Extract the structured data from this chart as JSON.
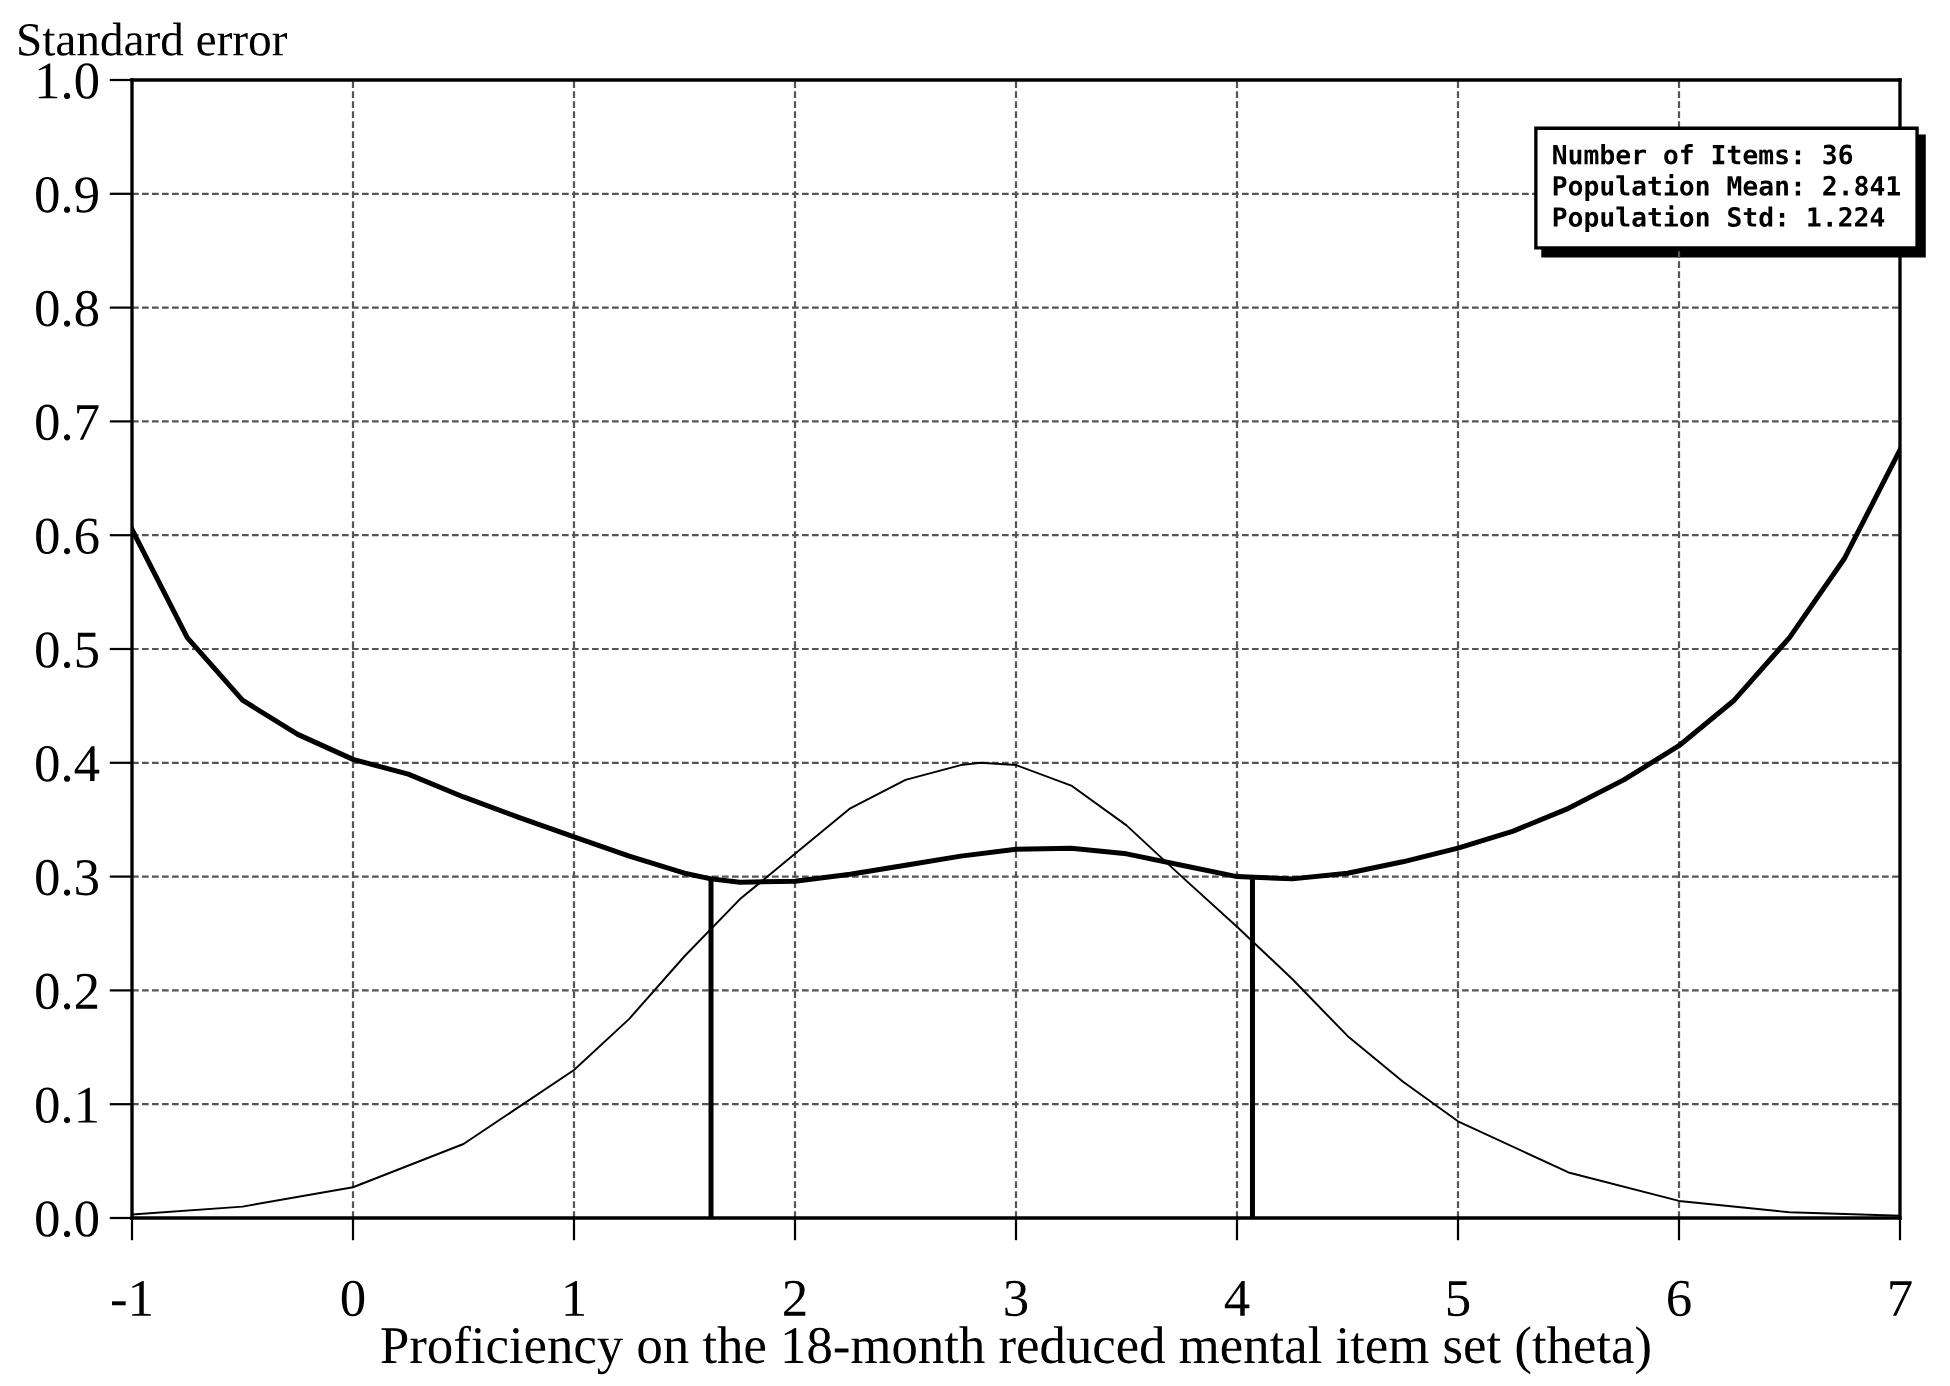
{
  "chart_data": {
    "type": "line",
    "ylabel": "Standard error",
    "xlabel": "Proficiency on the 18-month reduced mental item set (theta)",
    "annotations": [
      "Number of Items: 36\nPopulation Mean: 2.841\nPopulation Std: 1.224"
    ],
    "series": [
      {
        "color": "#000000",
        "x": [
          -1,
          -0.75,
          -0.5,
          -0.25,
          0,
          0.25,
          0.5,
          0.75,
          1,
          1.25,
          1.5,
          1.62,
          1.75,
          2,
          2.25,
          2.5,
          2.75,
          3,
          3.25,
          3.5,
          3.75,
          4,
          4.25,
          4.5,
          4.75,
          5,
          5.25,
          5.5,
          5.75,
          6,
          6.25,
          6.5,
          6.75,
          7
        ],
        "values": [
          0.605,
          0.51,
          0.455,
          0.425,
          0.403,
          0.39,
          0.37,
          0.352,
          0.335,
          0.318,
          0.303,
          0.298,
          0.295,
          0.296,
          0.302,
          0.31,
          0.318,
          0.324,
          0.325,
          0.32,
          0.31,
          0.3,
          0.298,
          0.303,
          0.313,
          0.325,
          0.34,
          0.36,
          0.385,
          0.415,
          0.455,
          0.51,
          0.58,
          0.675
        ]
      },
      {
        "color": "#000000",
        "x": [
          -1,
          -0.5,
          0,
          0.5,
          1,
          1.25,
          1.5,
          1.75,
          2,
          2.25,
          2.5,
          2.75,
          2.84,
          3,
          3.25,
          3.5,
          3.75,
          4,
          4.25,
          4.5,
          4.75,
          5,
          5.5,
          6,
          6.5,
          7
        ],
        "values": [
          0.003,
          0.01,
          0.027,
          0.065,
          0.13,
          0.175,
          0.23,
          0.28,
          0.32,
          0.36,
          0.385,
          0.398,
          0.4,
          0.398,
          0.38,
          0.345,
          0.3,
          0.256,
          0.21,
          0.16,
          0.12,
          0.085,
          0.04,
          0.015,
          0.005,
          0.002
        ]
      },
      {
        "color": "#000000",
        "x": [
          1.62,
          1.62
        ],
        "values": [
          0,
          0.298
        ]
      },
      {
        "color": "#000000",
        "x": [
          4.07,
          4.07
        ],
        "values": [
          0,
          0.298
        ]
      }
    ],
    "xlim": [
      -1,
      7
    ],
    "xticks": [
      -1,
      0,
      1,
      2,
      3,
      4,
      5,
      6,
      7
    ],
    "ylim": [
      0,
      1
    ],
    "yticks": [
      {
        "value": 0,
        "label": "0.0"
      },
      0.1,
      0.2,
      0.3,
      0.4,
      0.5,
      0.6,
      0.7,
      0.8,
      0.9,
      {
        "value": 1,
        "label": "1.0"
      }
    ],
    "grid": true,
    "marker": "none",
    "line_style": "solid"
  }
}
